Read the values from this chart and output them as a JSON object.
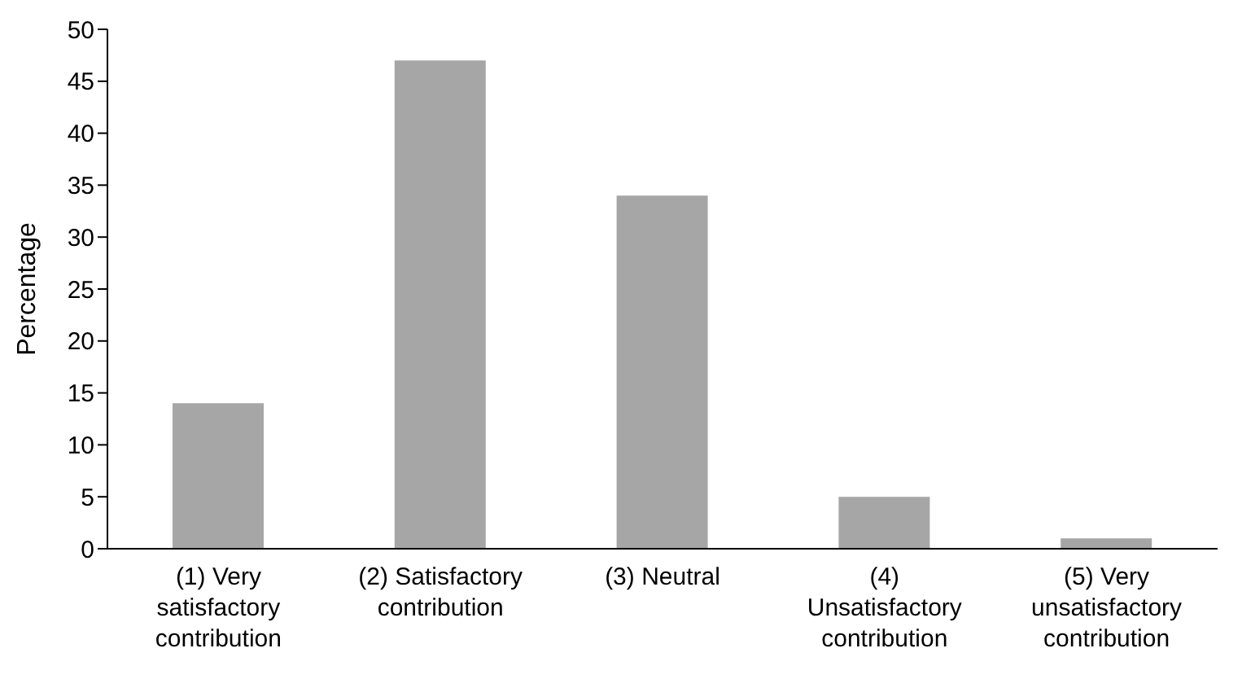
{
  "chart_data": {
    "type": "bar",
    "ylabel": "Percentage",
    "categories": [
      "(1) Very satisfactory contribution",
      "(2) Satisfactory contribution",
      "(3) Neutral",
      "(4) Unsatisfactory contribution",
      "(5) Very unsatisfactory contribution"
    ],
    "values": [
      14,
      47,
      34,
      5,
      1
    ],
    "color": "#a6a6a6",
    "ylim": [
      0,
      50
    ],
    "yticks": [
      0,
      5,
      10,
      15,
      20,
      25,
      30,
      35,
      40,
      45,
      50
    ],
    "grid": false,
    "legend": false
  }
}
